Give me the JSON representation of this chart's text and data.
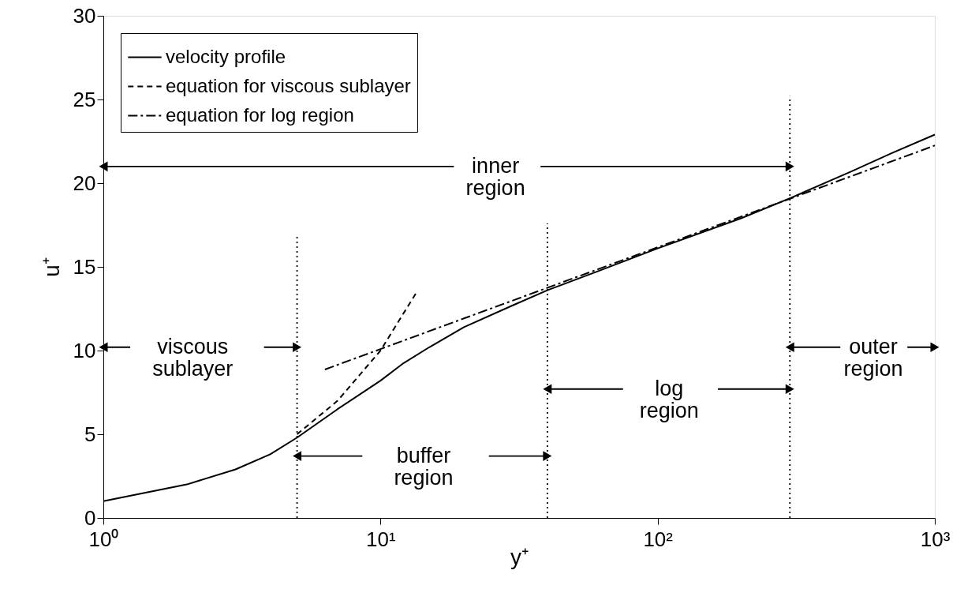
{
  "chart_data": {
    "type": "line",
    "xlabel": "y⁺",
    "ylabel": "u⁺",
    "log": "x",
    "xlim": [
      1,
      1000
    ],
    "ylim": [
      0,
      30
    ],
    "xticks": [
      {
        "value": 1,
        "label": "10⁰"
      },
      {
        "value": 10,
        "label": "10¹"
      },
      {
        "value": 100,
        "label": "10²"
      },
      {
        "value": 1000,
        "label": "10³"
      }
    ],
    "yticks": [
      0,
      5,
      10,
      15,
      20,
      25,
      30
    ],
    "grid": false,
    "legend": "top left",
    "series": [
      {
        "name": "velocity profile",
        "color": "#000000",
        "line_style": "solid",
        "x": [
          1,
          2,
          3,
          4,
          5,
          7,
          10,
          12,
          15,
          20,
          30,
          40,
          60,
          100,
          200,
          300,
          500,
          700,
          1000
        ],
        "values": [
          1.0,
          2.0,
          2.9,
          3.8,
          4.8,
          6.5,
          8.2,
          9.2,
          10.2,
          11.4,
          12.7,
          13.6,
          14.7,
          16.1,
          17.9,
          19.1,
          20.7,
          21.8,
          22.9
        ]
      },
      {
        "name": "equation for viscous sublayer",
        "color": "#000000",
        "line_style": "dashed",
        "x": [
          5,
          7,
          10,
          13.4
        ],
        "values": [
          5,
          7,
          10,
          13.4
        ]
      },
      {
        "name": "equation for log region",
        "color": "#000000",
        "line_style": "dashdot",
        "x": [
          6.3,
          10,
          20,
          40,
          100,
          300,
          1000
        ],
        "values": [
          8.87,
          10.09,
          11.92,
          13.75,
          16.17,
          19.07,
          22.25
        ]
      },
      {
        "color": "#000000",
        "line_style": "dotted",
        "x": [
          5,
          5
        ],
        "values": [
          0,
          16.8
        ]
      },
      {
        "color": "#000000",
        "line_style": "dotted",
        "x": [
          40,
          40
        ],
        "values": [
          0,
          17.6
        ]
      },
      {
        "color": "#000000",
        "line_style": "dotted",
        "x": [
          300,
          300
        ],
        "values": [
          0,
          25.2
        ]
      },
      {
        "color": "#000000",
        "line_style": "solid",
        "x": [
          1,
          18.4,
          26,
          37.8,
          300
        ],
        "values": [
          21,
          21,
          null,
          21,
          21
        ]
      },
      {
        "color": "#000000",
        "line_style": "solid",
        "x": [
          1,
          1.25,
          2.1,
          3.8,
          5
        ],
        "values": [
          10.2,
          10.2,
          null,
          10.2,
          10.2
        ]
      },
      {
        "color": "#000000",
        "line_style": "solid",
        "x": [
          5,
          8.6,
          14.3,
          24.6,
          40
        ],
        "values": [
          3.7,
          3.7,
          null,
          3.7,
          3.7
        ]
      },
      {
        "color": "#000000",
        "line_style": "solid",
        "x": [
          40,
          75,
          110,
          165,
          300
        ],
        "values": [
          7.7,
          7.7,
          null,
          7.7,
          7.7
        ]
      },
      {
        "color": "#000000",
        "line_style": "solid",
        "x": [
          300,
          456,
          600,
          796,
          1000
        ],
        "values": [
          10.2,
          10.2,
          null,
          10.2,
          10.2
        ]
      }
    ],
    "annotations": [
      "inner region",
      "viscous sublayer",
      "buffer region",
      "log region",
      "outer region"
    ]
  }
}
